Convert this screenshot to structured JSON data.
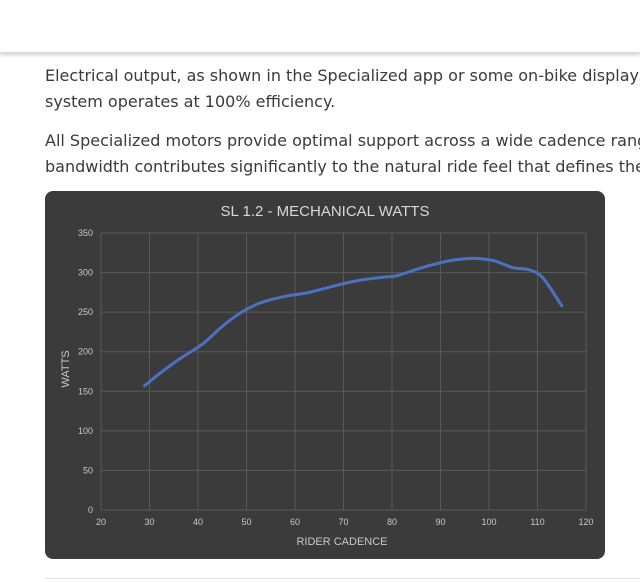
{
  "article": {
    "cut_line": "",
    "paragraph1": {
      "line1": "Electrical output, as shown in the Specialized app or some on-bike displays",
      "line2": "system operates at 100% efficiency."
    },
    "paragraph2": {
      "line1": "All Specialized motors provide optimal support across a wide cadence range",
      "line2": "bandwidth contributes significantly to the natural ride feel that defines the T"
    }
  },
  "colors": {
    "chart_bg": "#3b3b3b",
    "grid": "#5a5a5a",
    "line": "#4a72c0",
    "text": "#c8c8c8",
    "title": "#d8d8d8"
  },
  "chart_data": {
    "type": "line",
    "title": "SL 1.2 - MECHANICAL WATTS",
    "xlabel": "RIDER CADENCE",
    "ylabel": "WATTS",
    "xlim": [
      20,
      120
    ],
    "ylim": [
      0,
      350
    ],
    "xticks": [
      20,
      30,
      40,
      50,
      60,
      70,
      80,
      90,
      100,
      110,
      120
    ],
    "yticks": [
      0,
      50,
      100,
      150,
      200,
      250,
      300,
      350
    ],
    "grid": true,
    "series": [
      {
        "x": [
          29,
          32,
          36,
          41,
          45,
          49,
          53,
          58,
          63,
          68,
          73,
          78,
          81,
          85,
          89,
          93,
          97,
          101,
          105,
          108,
          111,
          115
        ],
        "y": [
          157,
          172,
          190,
          210,
          232,
          250,
          262,
          270,
          275,
          283,
          290,
          294,
          296,
          304,
          311,
          316,
          318,
          315,
          306,
          304,
          294,
          258
        ]
      }
    ]
  }
}
